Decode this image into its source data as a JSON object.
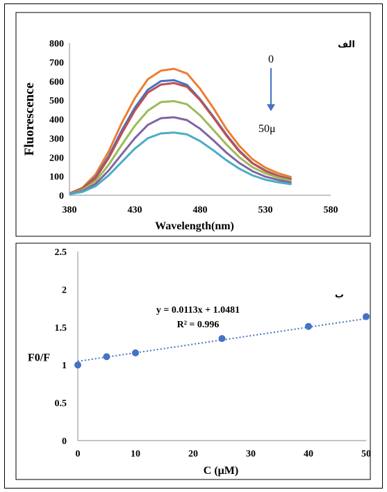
{
  "chart_data": [
    {
      "type": "line",
      "panel_label": "الف",
      "xlabel": "Wavelength(nm)",
      "ylabel": "Fluorescence",
      "xlim": [
        380,
        580
      ],
      "ylim": [
        0,
        800
      ],
      "xticks": [
        380,
        430,
        480,
        530,
        580
      ],
      "yticks": [
        0,
        100,
        200,
        300,
        400,
        500,
        600,
        700,
        800
      ],
      "grid": false,
      "annotations": {
        "start": "0",
        "end": "50μ",
        "arrow": "down"
      },
      "x": [
        380,
        390,
        400,
        410,
        420,
        430,
        440,
        450,
        460,
        470,
        480,
        490,
        500,
        510,
        520,
        530,
        540,
        550
      ],
      "series": [
        {
          "color": "#ed7d31",
          "values": [
            10,
            40,
            110,
            230,
            380,
            510,
            610,
            655,
            665,
            640,
            560,
            460,
            350,
            260,
            190,
            145,
            115,
            95
          ]
        },
        {
          "color": "#4472c4",
          "values": [
            9,
            35,
            95,
            205,
            340,
            460,
            555,
            600,
            605,
            580,
            505,
            415,
            320,
            235,
            170,
            130,
            102,
            84
          ]
        },
        {
          "color": "#c0504d",
          "values": [
            9,
            34,
            90,
            195,
            325,
            445,
            540,
            582,
            590,
            570,
            500,
            410,
            315,
            230,
            168,
            128,
            100,
            82
          ]
        },
        {
          "color": "#9bbb59",
          "values": [
            8,
            28,
            75,
            160,
            265,
            365,
            445,
            490,
            495,
            478,
            420,
            345,
            268,
            200,
            148,
            115,
            92,
            76
          ]
        },
        {
          "color": "#8064a2",
          "values": [
            7,
            22,
            60,
            130,
            215,
            300,
            370,
            405,
            410,
            395,
            350,
            290,
            225,
            170,
            127,
            98,
            80,
            66
          ]
        },
        {
          "color": "#4bacc6",
          "values": [
            6,
            18,
            48,
            105,
            175,
            245,
            300,
            325,
            330,
            320,
            285,
            237,
            185,
            140,
            105,
            82,
            68,
            58
          ]
        }
      ]
    },
    {
      "type": "scatter",
      "panel_label": "ب",
      "xlabel": "C (μM)",
      "ylabel": "F0/F",
      "xlim": [
        0,
        50
      ],
      "ylim": [
        0,
        2.5
      ],
      "xticks": [
        0,
        10,
        20,
        30,
        40,
        50
      ],
      "yticks": [
        "0",
        "0.5",
        "1",
        "1.5",
        "2",
        "2.5"
      ],
      "grid": false,
      "x": [
        0,
        5,
        10,
        25,
        40,
        50
      ],
      "y": [
        1.0,
        1.11,
        1.16,
        1.35,
        1.51,
        1.64
      ],
      "trendline": {
        "slope": 0.0113,
        "intercept": 1.0481,
        "style": "dotted"
      },
      "equation": "y = 0.0113x + 1.0481",
      "r2": "R² = 0.996",
      "marker_color": "#4472c4"
    }
  ]
}
